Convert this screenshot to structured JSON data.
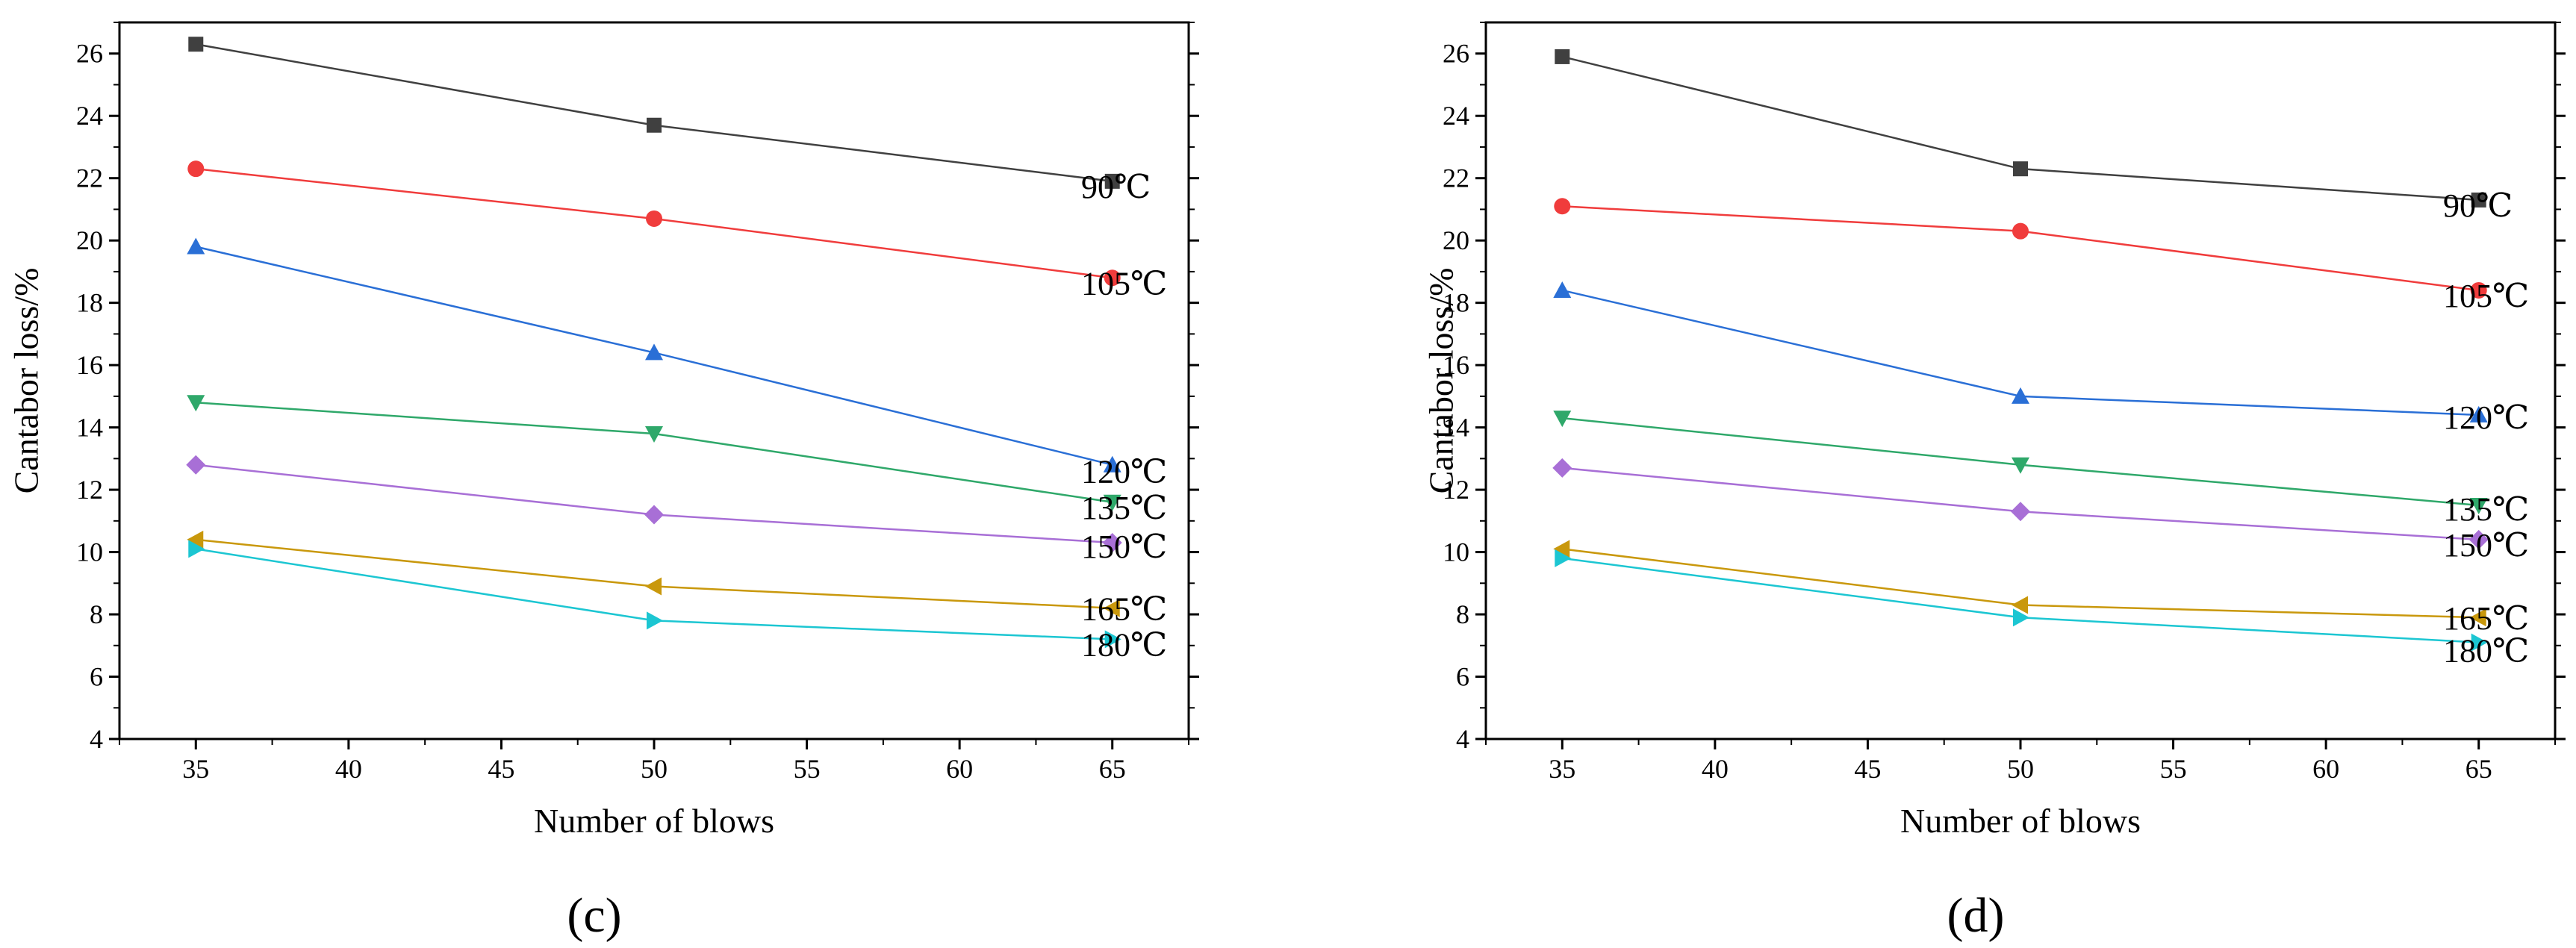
{
  "figure": {
    "panels": [
      "(c)",
      "(d)"
    ]
  },
  "chart_data": [
    {
      "type": "line",
      "panel_label": "(c)",
      "xlabel": "Number of  blows",
      "ylabel": "Cantabor loss/%",
      "xlim": [
        32.5,
        67.5
      ],
      "ylim": [
        4,
        27
      ],
      "xticks": [
        35,
        40,
        45,
        50,
        55,
        60,
        65
      ],
      "yticks": [
        4,
        6,
        8,
        10,
        12,
        14,
        16,
        18,
        20,
        22,
        24,
        26
      ],
      "x": [
        35,
        50,
        65
      ],
      "series": [
        {
          "name": "90℃",
          "color": "#404040",
          "marker": "square",
          "values": [
            26.3,
            23.7,
            21.9
          ]
        },
        {
          "name": "105℃",
          "color": "#f03c3c",
          "marker": "circle",
          "values": [
            22.3,
            20.7,
            18.8
          ]
        },
        {
          "name": "120℃",
          "color": "#2a6fd6",
          "marker": "triangle-up",
          "values": [
            19.8,
            16.4,
            12.8
          ]
        },
        {
          "name": "135℃",
          "color": "#2fa86a",
          "marker": "triangle-down",
          "values": [
            14.8,
            13.8,
            11.6
          ]
        },
        {
          "name": "150℃",
          "color": "#a86fd6",
          "marker": "diamond",
          "values": [
            12.8,
            11.2,
            10.3
          ]
        },
        {
          "name": "165℃",
          "color": "#c9980c",
          "marker": "triangle-left",
          "values": [
            10.4,
            8.9,
            8.2
          ]
        },
        {
          "name": "180℃",
          "color": "#1cc6d2",
          "marker": "triangle-right",
          "values": [
            10.1,
            7.8,
            7.2
          ]
        }
      ]
    },
    {
      "type": "line",
      "panel_label": "(d)",
      "xlabel": "Number of  blows",
      "ylabel": "Cantabor loss/%",
      "xlim": [
        32.5,
        67.5
      ],
      "ylim": [
        4,
        27
      ],
      "xticks": [
        35,
        40,
        45,
        50,
        55,
        60,
        65
      ],
      "yticks": [
        4,
        6,
        8,
        10,
        12,
        14,
        16,
        18,
        20,
        22,
        24,
        26
      ],
      "x": [
        35,
        50,
        65
      ],
      "series": [
        {
          "name": "90℃",
          "color": "#404040",
          "marker": "square",
          "values": [
            25.9,
            22.3,
            21.3
          ]
        },
        {
          "name": "105℃",
          "color": "#f03c3c",
          "marker": "circle",
          "values": [
            21.1,
            20.3,
            18.4
          ]
        },
        {
          "name": "120℃",
          "color": "#2a6fd6",
          "marker": "triangle-up",
          "values": [
            18.4,
            15.0,
            14.4
          ]
        },
        {
          "name": "135℃",
          "color": "#2fa86a",
          "marker": "triangle-down",
          "values": [
            14.3,
            12.8,
            11.5
          ]
        },
        {
          "name": "150℃",
          "color": "#a86fd6",
          "marker": "diamond",
          "values": [
            12.7,
            11.3,
            10.4
          ]
        },
        {
          "name": "165℃",
          "color": "#c9980c",
          "marker": "triangle-left",
          "values": [
            10.1,
            8.3,
            7.9
          ]
        },
        {
          "name": "180℃",
          "color": "#1cc6d2",
          "marker": "triangle-right",
          "values": [
            9.8,
            7.9,
            7.1
          ]
        }
      ]
    }
  ]
}
